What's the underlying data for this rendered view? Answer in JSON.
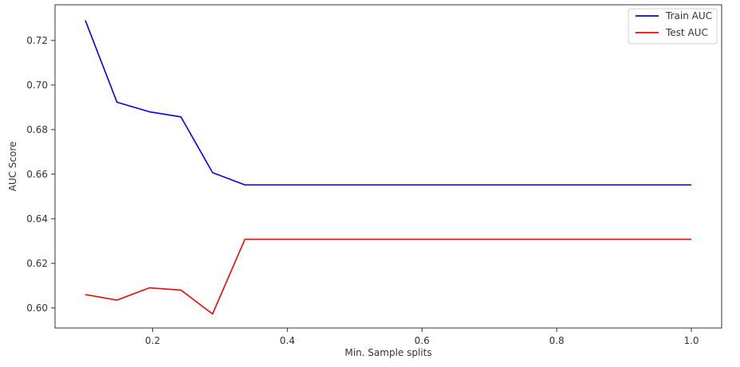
{
  "chart_data": {
    "type": "line",
    "title": "",
    "xlabel": "Min. Sample splits",
    "ylabel": "AUC Score",
    "xlim": [
      0.055,
      1.045
    ],
    "ylim": [
      0.591,
      0.736
    ],
    "xticks": [
      0.2,
      0.4,
      0.6,
      0.8,
      1.0
    ],
    "xtick_labels": [
      "0.2",
      "0.4",
      "0.6",
      "0.8",
      "1.0"
    ],
    "yticks": [
      0.6,
      0.62,
      0.64,
      0.66,
      0.68,
      0.7,
      0.72
    ],
    "ytick_labels": [
      "0.60",
      "0.62",
      "0.64",
      "0.66",
      "0.68",
      "0.70",
      "0.72"
    ],
    "grid": false,
    "legend_position": "top-right",
    "x": [
      0.1,
      0.147,
      0.195,
      0.242,
      0.289,
      0.337,
      0.384,
      0.432,
      0.479,
      0.526,
      0.574,
      0.621,
      0.668,
      0.716,
      0.763,
      0.811,
      0.858,
      0.905,
      0.953,
      1.0
    ],
    "series": [
      {
        "name": "Train AUC",
        "color": "#0000ff",
        "values": [
          0.729,
          0.6923,
          0.688,
          0.6857,
          0.6607,
          0.6552,
          0.6552,
          0.6552,
          0.6552,
          0.6552,
          0.6552,
          0.6552,
          0.6552,
          0.6552,
          0.6552,
          0.6552,
          0.6552,
          0.6552,
          0.6552,
          0.6552
        ]
      },
      {
        "name": "Test AUC",
        "color": "#ff0000",
        "values": [
          0.606,
          0.6035,
          0.609,
          0.608,
          0.5973,
          0.6308,
          0.6308,
          0.6308,
          0.6308,
          0.6308,
          0.6308,
          0.6308,
          0.6308,
          0.6308,
          0.6308,
          0.6308,
          0.6308,
          0.6308,
          0.6308,
          0.6308
        ]
      }
    ]
  }
}
